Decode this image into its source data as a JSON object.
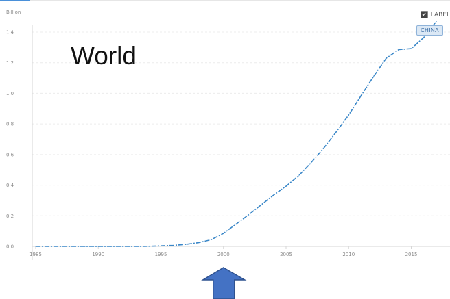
{
  "chart_data": {
    "type": "line",
    "unit_label": "Billion",
    "x": [
      1985,
      1986,
      1987,
      1988,
      1989,
      1990,
      1991,
      1992,
      1993,
      1994,
      1995,
      1996,
      1997,
      1998,
      1999,
      2000,
      2001,
      2002,
      2003,
      2004,
      2005,
      2006,
      2007,
      2008,
      2009,
      2010,
      2011,
      2012,
      2013,
      2014,
      2015,
      2016,
      2017
    ],
    "series": [
      {
        "name": "CHINA",
        "values": [
          0,
          0,
          0,
          0,
          0,
          0,
          0,
          0,
          0.0002,
          0.0008,
          0.0036,
          0.0068,
          0.013,
          0.024,
          0.043,
          0.085,
          0.145,
          0.206,
          0.27,
          0.335,
          0.393,
          0.461,
          0.547,
          0.641,
          0.747,
          0.859,
          0.986,
          1.112,
          1.229,
          1.286,
          1.292,
          1.365,
          1.47
        ],
        "color": "#3a87c8"
      }
    ],
    "xlim": [
      1985,
      2017
    ],
    "ylim": [
      0,
      1.5
    ],
    "xticks": [
      1985,
      1990,
      1995,
      2000,
      2005,
      2010,
      2015
    ],
    "yticks": [
      0.0,
      0.2,
      0.4,
      0.6,
      0.8,
      1.0,
      1.2,
      1.4
    ],
    "grid": true,
    "legend_position": "top-right"
  },
  "overlay": {
    "title": "World"
  },
  "legend": {
    "label_text": "LABEL",
    "checkbox_checked": true
  },
  "series_tag": "CHINA",
  "annotation": {
    "type": "up-arrow",
    "color": "#4472c4",
    "points_to_x": 2000
  }
}
